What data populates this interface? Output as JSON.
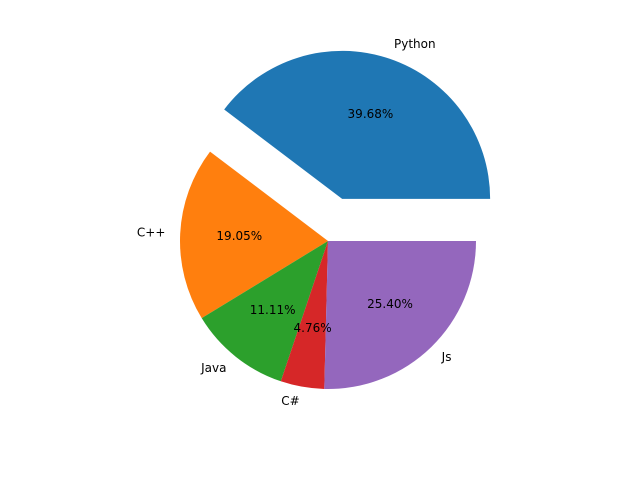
{
  "chart_data": {
    "type": "pie",
    "title": "",
    "categories": [
      "Python",
      "C++",
      "Java",
      "C#",
      "Js"
    ],
    "percent_labels": [
      "39.68%",
      "19.05%",
      "11.11%",
      "4.76%",
      "25.40%"
    ],
    "values": [
      39.68,
      19.05,
      11.11,
      4.76,
      25.4
    ],
    "colors": [
      "#1f77b4",
      "#ff7f0e",
      "#2ca02c",
      "#d62728",
      "#9467bd"
    ],
    "exploded": [
      "Python"
    ],
    "start_angle_deg": 0,
    "direction": "counterclockwise",
    "legend": "none"
  }
}
